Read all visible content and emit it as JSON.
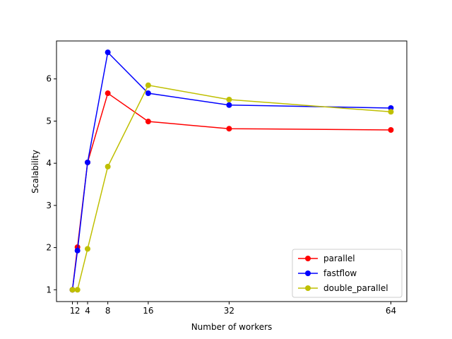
{
  "chart_data": {
    "type": "line",
    "title": "",
    "xlabel": "Number of workers",
    "ylabel": "Scalability",
    "x": [
      1,
      2,
      4,
      8,
      16,
      32,
      64
    ],
    "xticks": [
      1,
      2,
      4,
      8,
      16,
      32,
      64
    ],
    "yticks": [
      1,
      2,
      3,
      4,
      5,
      6
    ],
    "xlim": [
      -2.15,
      67.15
    ],
    "ylim": [
      0.72,
      6.9
    ],
    "grid": false,
    "legend_position": "lower-right",
    "series": [
      {
        "name": "parallel",
        "color": "#ff0000",
        "values": [
          1.0,
          2.01,
          4.02,
          5.66,
          4.99,
          4.82,
          4.79
        ]
      },
      {
        "name": "fastflow",
        "color": "#0000ff",
        "values": [
          1.0,
          1.93,
          4.02,
          6.63,
          5.66,
          5.38,
          5.31
        ]
      },
      {
        "name": "double_parallel",
        "color": "#bfbf00",
        "values": [
          1.0,
          1.0,
          1.97,
          3.92,
          5.85,
          5.51,
          5.22
        ]
      }
    ]
  }
}
